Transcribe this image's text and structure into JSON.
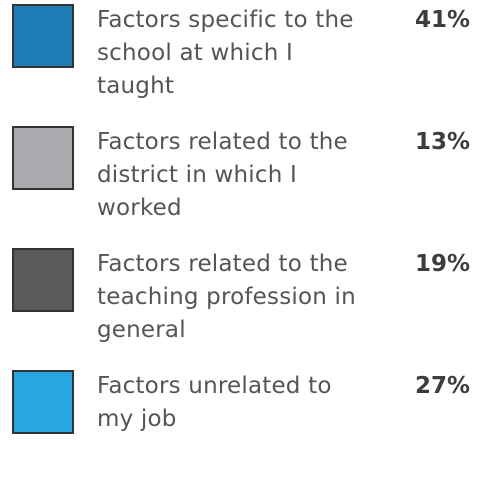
{
  "items": [
    {
      "color": "#1f7db5",
      "lines": [
        "Factors specific to the",
        "school at which I",
        "taught"
      ],
      "value": "41%"
    },
    {
      "color": "#a8aaad",
      "lines": [
        "Factors related to the",
        "district in which I",
        "worked"
      ],
      "value": "13%"
    },
    {
      "color": "#595a5c",
      "lines": [
        "Factors related to the",
        "teaching profession in",
        "general"
      ],
      "value": "19%"
    },
    {
      "color": "#29a6df",
      "lines": [
        "Factors unrelated to",
        "my job"
      ],
      "value": "27%"
    }
  ]
}
